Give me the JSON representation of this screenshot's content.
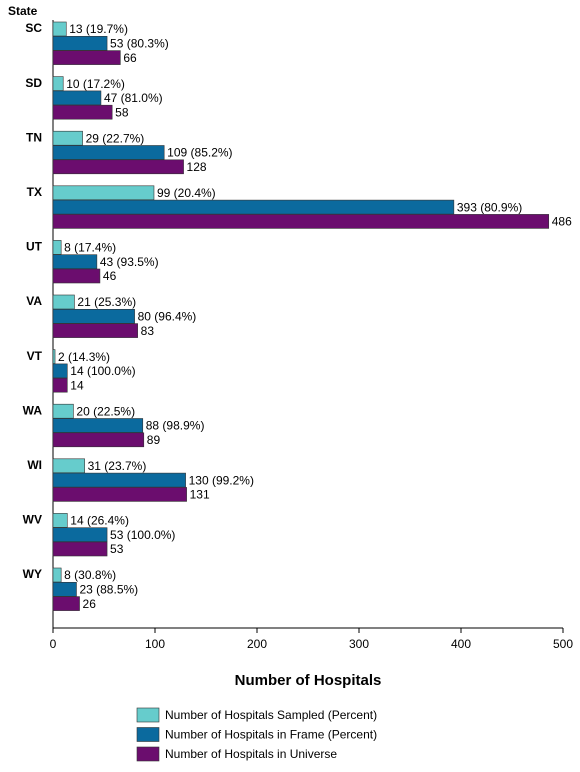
{
  "chart_data": {
    "type": "bar",
    "orientation": "horizontal",
    "y_label": "State",
    "x_label": "Number of Hospitals",
    "categories": [
      "SC",
      "SD",
      "TN",
      "TX",
      "UT",
      "VA",
      "VT",
      "WA",
      "WI",
      "WV",
      "WY"
    ],
    "series": [
      {
        "name": "Number of Hospitals Sampled (Percent)",
        "color": "#66cccc",
        "values": [
          13,
          10,
          29,
          99,
          8,
          21,
          2,
          20,
          31,
          14,
          8
        ],
        "value_labels": [
          "13 (19.7%)",
          "10 (17.2%)",
          "29 (22.7%)",
          "99 (20.4%)",
          "8 (17.4%)",
          "21 (25.3%)",
          "2 (14.3%)",
          "20 (22.5%)",
          "31 (23.7%)",
          "14 (26.4%)",
          "8 (30.8%)"
        ]
      },
      {
        "name": "Number of Hospitals in Frame (Percent)",
        "color": "#0b6a9e",
        "values": [
          53,
          47,
          109,
          393,
          43,
          80,
          14,
          88,
          130,
          53,
          23
        ],
        "value_labels": [
          "53 (80.3%)",
          "47 (81.0%)",
          "109 (85.2%)",
          "393 (80.9%)",
          "43 (93.5%)",
          "80 (96.4%)",
          "14 (100.0%)",
          "88 (98.9%)",
          "130 (99.2%)",
          "53 (100.0%)",
          "23 (88.5%)"
        ]
      },
      {
        "name": "Number of Hospitals in Universe",
        "color": "#6b0d6e",
        "values": [
          66,
          58,
          128,
          486,
          46,
          83,
          14,
          89,
          131,
          53,
          26
        ]
      }
    ],
    "xlim": [
      0,
      500
    ],
    "xticks": [
      0,
      100,
      200,
      300,
      400,
      500
    ]
  }
}
